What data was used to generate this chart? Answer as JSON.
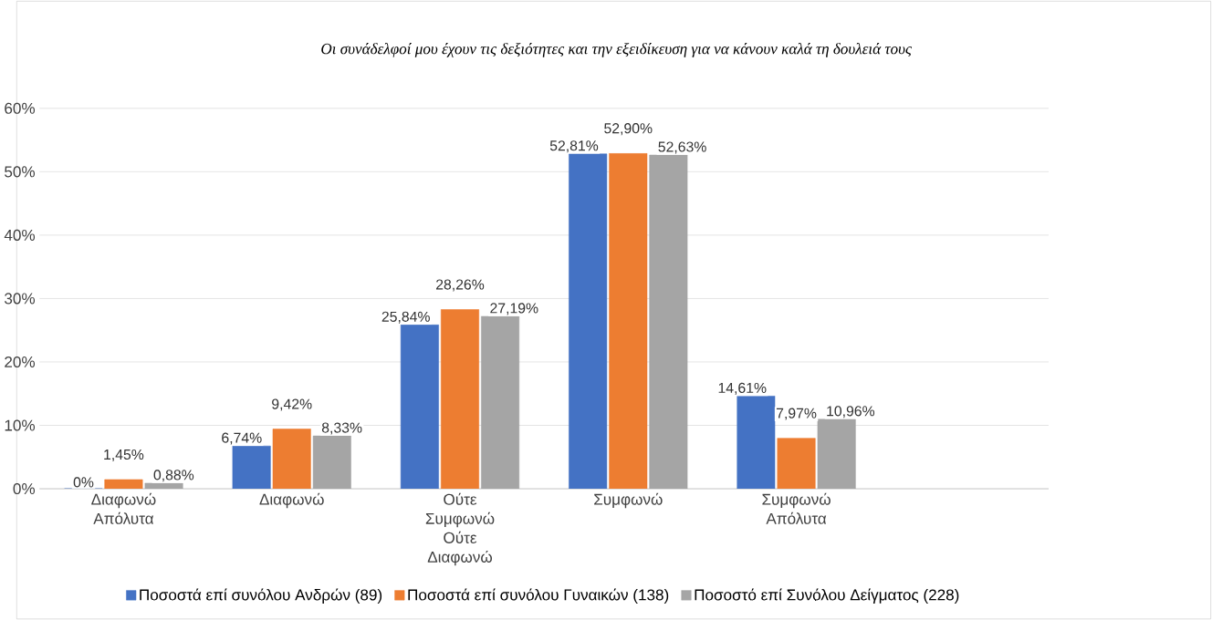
{
  "chart_data": {
    "type": "bar",
    "title": "Οι συνάδελφοί μου έχουν τις δεξιότητες και την εξειδίκευση για να κάνουν καλά τη δουλειά τους",
    "categories": [
      "Διαφωνώ Απόλυτα",
      "Διαφωνώ",
      "Ούτε Συμφωνώ Ούτε Διαφωνώ",
      "Συμφωνώ",
      "Συμφωνώ Απόλυτα"
    ],
    "series": [
      {
        "name": "Ποσοστά επί συνόλου Ανδρών (89)",
        "color": "#4472c4",
        "values": [
          0,
          6.74,
          25.84,
          52.81,
          14.61
        ],
        "value_labels": [
          "0%",
          "6,74%",
          "25,84%",
          "52,81%",
          "14,61%"
        ]
      },
      {
        "name": "Ποσοστά επί συνόλου Γυναικών (138)",
        "color": "#ed7d31",
        "values": [
          1.45,
          9.42,
          28.26,
          52.9,
          7.97
        ],
        "value_labels": [
          "1,45%",
          "9,42%",
          "28,26%",
          "52,90%",
          "7,97%"
        ]
      },
      {
        "name": "Ποσοστό επί Συνόλου Δείγματος (228)",
        "color": "#a5a5a5",
        "values": [
          0.88,
          8.33,
          27.19,
          52.63,
          10.96
        ],
        "value_labels": [
          "0,88%",
          "8,33%",
          "27,19%",
          "52,63%",
          "10,96%"
        ]
      }
    ],
    "ylim": [
      0,
      60
    ],
    "yticks": [
      {
        "value": 0,
        "label": "0%"
      },
      {
        "value": 10,
        "label": "10%"
      },
      {
        "value": 20,
        "label": "20%"
      },
      {
        "value": 30,
        "label": "30%"
      },
      {
        "value": 40,
        "label": "40%"
      },
      {
        "value": 50,
        "label": "50%"
      },
      {
        "value": 60,
        "label": "60%"
      }
    ],
    "grid": "y",
    "legend": "bottom"
  }
}
